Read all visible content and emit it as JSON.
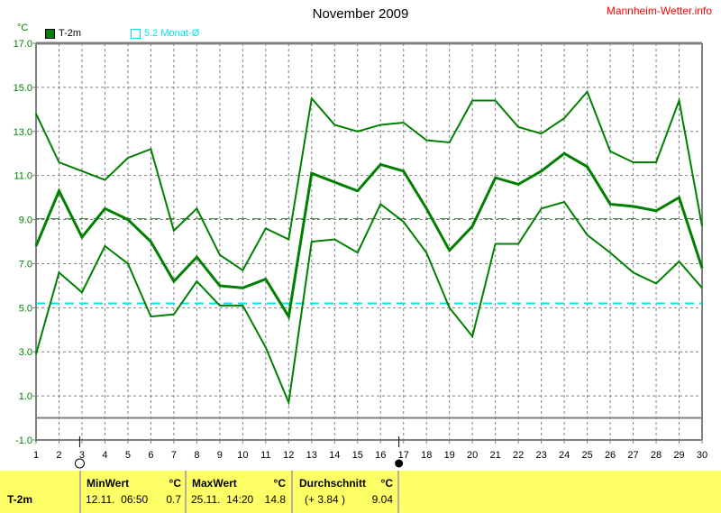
{
  "header": {
    "title": "November 2009",
    "brand": "Mannheim-Wetter.info",
    "unit": "°C"
  },
  "legend": [
    {
      "label": "T-2m",
      "color": "#008000"
    },
    {
      "label": "5.2 Monat-Ø",
      "color": "#00e5ee"
    }
  ],
  "chart_data": {
    "type": "line",
    "title": "November 2009",
    "ylabel": "°C",
    "x": [
      1,
      2,
      3,
      4,
      5,
      6,
      7,
      8,
      9,
      10,
      11,
      12,
      13,
      14,
      15,
      16,
      17,
      18,
      19,
      20,
      21,
      22,
      23,
      24,
      25,
      26,
      27,
      28,
      29,
      30
    ],
    "xlim": [
      1,
      30
    ],
    "ylim": [
      -1,
      17
    ],
    "yticks": [
      "17.0",
      "15.0",
      "13.0",
      "11.0",
      "9.0",
      "7.0",
      "5.0",
      "3.0",
      "1.0",
      "-1.0"
    ],
    "grid": true,
    "series": [
      {
        "role": "max",
        "color": "#008000",
        "values": [
          13.8,
          11.6,
          11.2,
          10.8,
          11.8,
          12.2,
          8.5,
          9.5,
          7.4,
          6.7,
          8.6,
          8.1,
          14.5,
          13.3,
          13.0,
          13.3,
          13.4,
          12.6,
          12.5,
          14.4,
          14.4,
          13.2,
          12.9,
          13.6,
          14.8,
          12.1,
          11.6,
          11.6,
          14.4,
          8.7
        ]
      },
      {
        "role": "mean",
        "color": "#008000",
        "values": [
          7.8,
          10.3,
          8.2,
          9.5,
          9.0,
          8.0,
          6.2,
          7.3,
          6.0,
          5.9,
          6.3,
          4.6,
          11.1,
          10.7,
          10.3,
          11.5,
          11.2,
          9.5,
          7.6,
          8.7,
          10.9,
          10.6,
          11.2,
          12.0,
          11.4,
          9.7,
          9.6,
          9.4,
          10.0,
          6.8
        ]
      },
      {
        "role": "min",
        "color": "#008000",
        "values": [
          2.9,
          6.6,
          5.7,
          7.8,
          7.0,
          4.6,
          4.7,
          6.2,
          5.1,
          5.1,
          3.2,
          0.7,
          8.0,
          8.1,
          7.5,
          9.7,
          8.9,
          7.5,
          5.0,
          3.7,
          7.9,
          7.9,
          9.5,
          9.8,
          8.3,
          7.5,
          6.6,
          6.1,
          7.1,
          5.9
        ]
      }
    ],
    "reference_lines": [
      {
        "value": 9.04,
        "color": "#2e7d32",
        "style": "dashed"
      },
      {
        "value": 5.2,
        "color": "#00e5ee",
        "style": "dashed"
      }
    ],
    "moon_phases": [
      {
        "day": 2.9,
        "phase": "full-moon"
      },
      {
        "day": 16.8,
        "phase": "new-moon"
      }
    ]
  },
  "table": {
    "row_label": "T-2m",
    "min": {
      "header": "MinWert",
      "unit": "°C",
      "date": "12.11.  06:50",
      "value": "0.7"
    },
    "max": {
      "header": "MaxWert",
      "unit": "°C",
      "date": "25.11.  14:20",
      "value": "14.8"
    },
    "avg": {
      "header": "Durchschnitt",
      "unit": "°C",
      "diff": "(+ 3.84 )",
      "value": "9.04"
    }
  }
}
